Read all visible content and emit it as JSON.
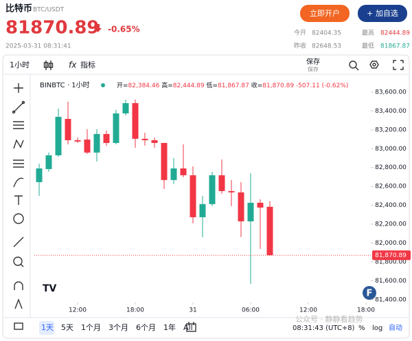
{
  "header": {
    "name": "比特币",
    "symbol": "BTC/USDT",
    "price": "81870.89",
    "change": "-0.65%",
    "timestamp": "2025-03-31 08:31:41",
    "buttons": [
      "立即开户",
      "+ 加自选"
    ],
    "stats": [
      {
        "label": "今开",
        "value": "82404.35"
      },
      {
        "label": "最高",
        "value": "82444.89"
      },
      {
        "label": "昨收",
        "value": "82648.53"
      },
      {
        "label": "最低",
        "value": "81867.87"
      }
    ]
  },
  "toolbar": {
    "interval": "1小时",
    "indicators": "指标",
    "save": "保存",
    "save_sub": "保存"
  },
  "chart_data": {
    "type": "candlestick",
    "legend": "BINBTC · 1小时",
    "ohlc": [
      {
        "label": "开=",
        "value": "82,384.46"
      },
      {
        "label": "高=",
        "value": "82,444.89"
      },
      {
        "label": "低=",
        "value": "81,867.87"
      },
      {
        "label": "收=",
        "value": "81,870.89"
      }
    ],
    "change": "-507.11 (-0.62%)",
    "x": [
      0,
      1,
      2,
      3,
      4,
      5,
      6,
      7,
      8,
      9,
      10,
      11,
      12,
      13,
      14,
      15,
      16,
      17,
      18,
      19,
      20,
      21,
      22,
      23,
      24
    ],
    "open": [
      82646,
      82784,
      82930,
      83316,
      83090,
      83097,
      82959,
      83156,
      83061,
      83374,
      83483,
      83105,
      83090,
      83061,
      82668,
      82791,
      82719,
      82274,
      82413,
      82719,
      82551,
      82537,
      82230,
      82427,
      82384.46
    ],
    "high": [
      82842,
      82959,
      83425,
      83498,
      83119,
      83207,
      83207,
      83192,
      83411,
      83520,
      83520,
      83170,
      83119,
      83061,
      82901,
      83046,
      82813,
      82500,
      82755,
      82886,
      82668,
      82646,
      82740,
      82464,
      82444.89
    ],
    "low": [
      82500,
      82755,
      82915,
      83046,
      83061,
      82944,
      82864,
      83032,
      83046,
      83352,
      83010,
      83032,
      83010,
      82573,
      82624,
      82697,
      82209,
      82063,
      82391,
      82522,
      82391,
      82063,
      81568,
      81939,
      81867.87
    ],
    "close": [
      82791,
      82930,
      83338,
      83090,
      83076,
      82959,
      83156,
      83061,
      83374,
      83483,
      83105,
      83090,
      83061,
      82668,
      82791,
      82719,
      82274,
      82413,
      82719,
      82551,
      82537,
      82230,
      82427,
      82376,
      81870.89
    ],
    "up_color": "#22ab94",
    "down_color": "#f23645",
    "xlim": [
      -0.5,
      34.5
    ],
    "xticks": [
      {
        "value": 4,
        "label": "12:00"
      },
      {
        "value": 10,
        "label": "18:00"
      },
      {
        "value": 16,
        "label": "31"
      },
      {
        "value": 22,
        "label": "06:00"
      },
      {
        "value": 28,
        "label": "12:00"
      },
      {
        "value": 34,
        "label": "18:00"
      }
    ],
    "ylim": [
      81370,
      83760
    ],
    "yticks": [
      {
        "value": 81400,
        "label": "81,400.00"
      },
      {
        "value": 81600,
        "label": "81,600.00"
      },
      {
        "value": 81800,
        "label": "81,800.00"
      },
      {
        "value": 82000,
        "label": "82,000.00"
      },
      {
        "value": 82200,
        "label": "82,200.00"
      },
      {
        "value": 82400,
        "label": "82,400.00"
      },
      {
        "value": 82600,
        "label": "82,600.00"
      },
      {
        "value": 82800,
        "label": "82,800.00"
      },
      {
        "value": 83000,
        "label": "83,000.00"
      },
      {
        "value": 83200,
        "label": "83,200.00"
      },
      {
        "value": 83400,
        "label": "83,400.00"
      },
      {
        "value": 83600,
        "label": "83,600.00"
      }
    ],
    "last_price": {
      "value": 81870.89,
      "label": "81,870.89"
    },
    "grid": false
  },
  "footer": {
    "ranges": [
      "1天",
      "5天",
      "1个月",
      "3个月",
      "6个月",
      "1年",
      "All"
    ],
    "time": "08:31:43 (UTC+8)",
    "percent": "%",
    "log": "log",
    "auto": "自动"
  },
  "watermark": "公众号 · 静静看趋势"
}
